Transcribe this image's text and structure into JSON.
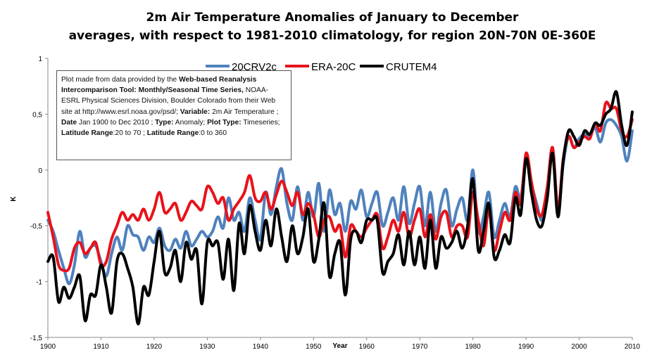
{
  "chart_data": {
    "type": "line",
    "title": "2m Air Temperature Anomalies of January to December averages, with respect to 1981-2010 climatology, for region 20N-70N 0E-360E",
    "title_lines": [
      "2m Air Temperature Anomalies of January to December",
      "averages, with respect to 1981-2010 climatology, for region 20N-70N 0E-360E"
    ],
    "xlabel": "Year",
    "ylabel": "K",
    "xlim": [
      1900,
      2010
    ],
    "ylim": [
      -1.5,
      1
    ],
    "xticks": [
      1900,
      1910,
      1920,
      1930,
      1940,
      1950,
      1960,
      1970,
      1980,
      1990,
      2000,
      2010
    ],
    "xtick_labels": [
      "1900",
      "1910",
      "1920",
      "1930",
      "1940",
      "1950",
      "1960",
      "1970",
      "1980",
      "1990",
      "2000",
      "2010"
    ],
    "yticks": [
      1,
      0.5,
      0,
      -0.5,
      -1,
      -1.5
    ],
    "ytick_labels": [
      "1",
      "0,5",
      "0",
      "-0,5",
      "-1",
      "-1,5"
    ],
    "grid": false,
    "legend_position": "top-center",
    "x": [
      1900,
      1901,
      1902,
      1903,
      1904,
      1905,
      1906,
      1907,
      1908,
      1909,
      1910,
      1911,
      1912,
      1913,
      1914,
      1915,
      1916,
      1917,
      1918,
      1919,
      1920,
      1921,
      1922,
      1923,
      1924,
      1925,
      1926,
      1927,
      1928,
      1929,
      1930,
      1931,
      1932,
      1933,
      1934,
      1935,
      1936,
      1937,
      1938,
      1939,
      1940,
      1941,
      1942,
      1943,
      1944,
      1945,
      1946,
      1947,
      1948,
      1949,
      1950,
      1951,
      1952,
      1953,
      1954,
      1955,
      1956,
      1957,
      1958,
      1959,
      1960,
      1961,
      1962,
      1963,
      1964,
      1965,
      1966,
      1967,
      1968,
      1969,
      1970,
      1971,
      1972,
      1973,
      1974,
      1975,
      1976,
      1977,
      1978,
      1979,
      1980,
      1981,
      1982,
      1983,
      1984,
      1985,
      1986,
      1987,
      1988,
      1989,
      1990,
      1991,
      1992,
      1993,
      1994,
      1995,
      1996,
      1997,
      1998,
      1999,
      2000,
      2001,
      2002,
      2003,
      2004,
      2005,
      2006,
      2007,
      2008,
      2009,
      2010
    ],
    "series": [
      {
        "name": "20CRV2c",
        "color": "#4f81bd",
        "values": [
          -0.45,
          -0.55,
          -0.72,
          -0.88,
          -1.02,
          -0.85,
          -0.55,
          -0.78,
          -0.7,
          -0.68,
          -0.82,
          -0.95,
          -0.75,
          -0.6,
          -0.72,
          -0.5,
          -0.58,
          -0.6,
          -0.72,
          -0.6,
          -0.65,
          -0.52,
          -0.68,
          -0.72,
          -0.62,
          -0.7,
          -0.55,
          -0.68,
          -0.62,
          -0.55,
          -0.6,
          -0.55,
          -0.42,
          -0.52,
          -0.25,
          -0.45,
          -0.38,
          -0.55,
          -0.25,
          -0.45,
          -0.62,
          -0.2,
          -0.4,
          -0.15,
          0.01,
          -0.3,
          -0.45,
          -0.15,
          -0.45,
          -0.2,
          -0.42,
          -0.12,
          -0.55,
          -0.18,
          -0.4,
          -0.3,
          -0.55,
          -0.28,
          -0.35,
          -0.18,
          -0.42,
          -0.3,
          -0.2,
          -0.5,
          -0.38,
          -0.25,
          -0.45,
          -0.15,
          -0.48,
          -0.3,
          -0.15,
          -0.5,
          -0.2,
          -0.55,
          -0.3,
          -0.18,
          -0.5,
          -0.35,
          -0.25,
          -0.45,
          0.0,
          -0.55,
          -0.42,
          -0.2,
          -0.6,
          -0.45,
          -0.3,
          -0.42,
          -0.15,
          -0.25,
          0.1,
          -0.12,
          -0.3,
          -0.45,
          -0.2,
          0.2,
          -0.35,
          0.05,
          0.3,
          0.2,
          0.28,
          0.32,
          0.3,
          0.38,
          0.25,
          0.42,
          0.45,
          0.4,
          0.3,
          0.08,
          0.35
        ]
      },
      {
        "name": "ERA-20C",
        "color": "#e8121a",
        "values": [
          -0.38,
          -0.6,
          -0.85,
          -0.9,
          -0.88,
          -0.7,
          -0.65,
          -0.75,
          -0.7,
          -0.65,
          -0.85,
          -0.82,
          -0.62,
          -0.5,
          -0.38,
          -0.45,
          -0.4,
          -0.45,
          -0.35,
          -0.45,
          -0.35,
          -0.2,
          -0.38,
          -0.35,
          -0.3,
          -0.45,
          -0.38,
          -0.28,
          -0.32,
          -0.35,
          -0.15,
          -0.2,
          -0.3,
          -0.25,
          -0.45,
          -0.35,
          -0.28,
          -0.2,
          -0.05,
          -0.25,
          -0.28,
          -0.2,
          -0.35,
          -0.22,
          -0.1,
          -0.2,
          -0.32,
          -0.2,
          -0.4,
          -0.3,
          -0.4,
          -0.6,
          -0.45,
          -0.42,
          -0.55,
          -0.5,
          -0.78,
          -0.5,
          -0.55,
          -0.6,
          -0.52,
          -0.45,
          -0.4,
          -0.7,
          -0.6,
          -0.45,
          -0.55,
          -0.38,
          -0.6,
          -0.45,
          -0.35,
          -0.6,
          -0.4,
          -0.62,
          -0.42,
          -0.38,
          -0.6,
          -0.5,
          -0.5,
          -0.6,
          -0.2,
          -0.45,
          -0.68,
          -0.35,
          -0.72,
          -0.55,
          -0.38,
          -0.45,
          -0.2,
          -0.3,
          0.15,
          -0.1,
          -0.35,
          -0.4,
          -0.15,
          0.2,
          -0.35,
          0.1,
          0.3,
          0.2,
          0.25,
          0.3,
          0.28,
          0.42,
          0.35,
          0.6,
          0.55,
          0.55,
          0.35,
          0.3,
          0.45
        ]
      },
      {
        "name": "CRUTEM4",
        "color": "#000000",
        "values": [
          -0.82,
          -0.78,
          -1.18,
          -1.05,
          -1.15,
          -1.05,
          -0.95,
          -1.35,
          -1.12,
          -1.12,
          -0.85,
          -1.05,
          -1.28,
          -0.82,
          -0.75,
          -0.88,
          -1.05,
          -1.38,
          -1.05,
          -1.12,
          -0.82,
          -0.55,
          -0.92,
          -0.88,
          -0.72,
          -1.0,
          -0.65,
          -0.8,
          -0.72,
          -1.2,
          -0.65,
          -0.68,
          -0.65,
          -0.98,
          -0.62,
          -1.08,
          -0.48,
          -0.75,
          -0.32,
          -0.55,
          -0.72,
          -0.45,
          -0.68,
          -0.35,
          -0.6,
          -0.82,
          -0.5,
          -0.75,
          -0.6,
          -0.35,
          -0.82,
          -0.62,
          -0.3,
          -0.95,
          -0.75,
          -0.65,
          -1.12,
          -0.62,
          -0.55,
          -0.65,
          -0.45,
          -0.45,
          -0.45,
          -0.92,
          -0.82,
          -0.75,
          -0.58,
          -0.85,
          -0.55,
          -0.85,
          -0.6,
          -0.88,
          -0.45,
          -0.88,
          -0.6,
          -0.7,
          -0.65,
          -0.55,
          -0.7,
          -0.5,
          -0.08,
          -0.72,
          -0.55,
          -0.3,
          -0.78,
          -0.72,
          -0.58,
          -0.65,
          -0.25,
          -0.4,
          0.1,
          -0.2,
          -0.45,
          -0.5,
          -0.25,
          0.15,
          -0.42,
          0.08,
          0.35,
          0.3,
          0.22,
          0.35,
          0.32,
          0.42,
          0.4,
          0.5,
          0.55,
          0.7,
          0.4,
          0.22,
          0.52
        ]
      }
    ]
  },
  "legend": {
    "items": [
      "20CRV2c",
      "ERA-20C",
      "CRUTEM4"
    ]
  },
  "note": {
    "parts": [
      {
        "text": "Plot made from data provided by the ",
        "bold": false
      },
      {
        "text": "Web-based Reanalysis Intercomparison Tool: Monthly/Seasonal Time Series,",
        "bold": true
      },
      {
        "text": " NOAA-ESRL Physical Sciences Division, Boulder Colorado from their Web site at http://www.esrl.noaa.gov/psd/; ",
        "bold": false
      },
      {
        "text": "Variable:",
        "bold": true
      },
      {
        "text": " 2m Air Temperature ; ",
        "bold": false
      },
      {
        "text": "Date",
        "bold": true
      },
      {
        "text": " Jan 1900 to Dec 2010 ; ",
        "bold": false
      },
      {
        "text": "Type:",
        "bold": true
      },
      {
        "text": " Anomaly; ",
        "bold": false
      },
      {
        "text": "Plot Type:",
        "bold": true
      },
      {
        "text": " Timeseries; ",
        "bold": false
      },
      {
        "text": "Latitude Range",
        "bold": true
      },
      {
        "text": ":20 to 70 ; ",
        "bold": false
      },
      {
        "text": "Latitude Range",
        "bold": true
      },
      {
        "text": ":0 to 360",
        "bold": false
      }
    ]
  }
}
